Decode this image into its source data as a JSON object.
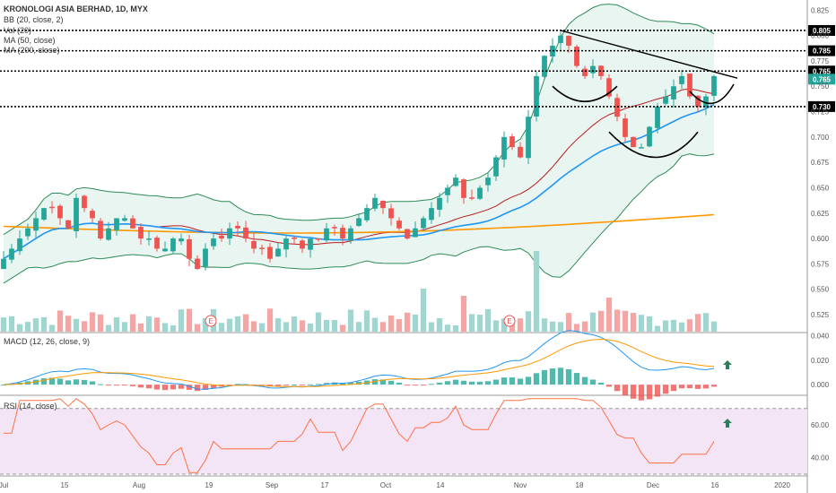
{
  "header": {
    "symbol_title": "KRONOLOGI ASIA BERHAD, 1D, MYX",
    "indicators": [
      "BB (20, close, 2)",
      "Vol (20)",
      "MA (50, close)",
      "MA (200, close)"
    ]
  },
  "macd_title": "MACD (12, 26, close, 9)",
  "rsi_title": "RSI (14, close)",
  "earnings_marker": "E",
  "colors": {
    "up": "#26a69a",
    "down": "#ef5350",
    "bb": "#2e8b57",
    "bb_fill": "#e3f2ee",
    "ma50": "#2196f3",
    "ma200": "#ff9800",
    "basis": "#b71c1c",
    "macd": "#2196f3",
    "signal": "#ff9800",
    "rsi": "#ff7043",
    "rsi_band": "#f3e5f5",
    "tag": "#000000",
    "arrow": "#2e7d5b"
  },
  "chart_data": {
    "type": "candlestick",
    "x_ticks": [
      "Jul",
      "15",
      "Aug",
      "19",
      "Sep",
      "17",
      "Oct",
      "14",
      "Nov",
      "18",
      "Dec",
      "16",
      "2020"
    ],
    "price_axis": {
      "ylim": [
        0.51,
        0.835
      ],
      "ticks": [
        "0.525",
        "0.550",
        "0.575",
        "0.600",
        "0.625",
        "0.650",
        "0.675",
        "0.700",
        "0.725",
        "0.750",
        "0.775",
        "0.800",
        "0.825"
      ]
    },
    "levels": [
      0.805,
      0.785,
      0.765,
      0.73
    ],
    "price_tags": [
      "0.805",
      "0.785",
      "0.765",
      "0.765",
      "0.730"
    ],
    "trendline": {
      "from": [
        0.805
      ],
      "to": [
        0.76
      ]
    },
    "ohlc_close_approx": [
      0.58,
      0.59,
      0.6,
      0.61,
      0.62,
      0.63,
      0.63,
      0.62,
      0.61,
      0.64,
      0.63,
      0.62,
      0.6,
      0.61,
      0.62,
      0.62,
      0.61,
      0.6,
      0.6,
      0.59,
      0.59,
      0.6,
      0.6,
      0.58,
      0.57,
      0.59,
      0.6,
      0.6,
      0.61,
      0.61,
      0.6,
      0.59,
      0.59,
      0.58,
      0.59,
      0.6,
      0.6,
      0.59,
      0.6,
      0.6,
      0.61,
      0.61,
      0.6,
      0.61,
      0.62,
      0.63,
      0.64,
      0.63,
      0.62,
      0.61,
      0.6,
      0.61,
      0.62,
      0.63,
      0.64,
      0.65,
      0.66,
      0.64,
      0.64,
      0.65,
      0.66,
      0.68,
      0.7,
      0.69,
      0.68,
      0.72,
      0.76,
      0.78,
      0.79,
      0.8,
      0.79,
      0.77,
      0.76,
      0.77,
      0.76,
      0.74,
      0.72,
      0.7,
      0.69,
      0.69,
      0.71,
      0.73,
      0.74,
      0.75,
      0.76,
      0.74,
      0.73,
      0.74,
      0.76
    ],
    "volume_axis": "Vol (20)",
    "macd_axis": {
      "ylim": [
        -0.008,
        0.042
      ],
      "ticks": [
        "0.040",
        "0.020",
        "0.000"
      ]
    },
    "rsi_axis": {
      "ylim": [
        30,
        77
      ],
      "ticks": [
        "60.00",
        "40.00"
      ],
      "bands": [
        70,
        30
      ]
    }
  }
}
